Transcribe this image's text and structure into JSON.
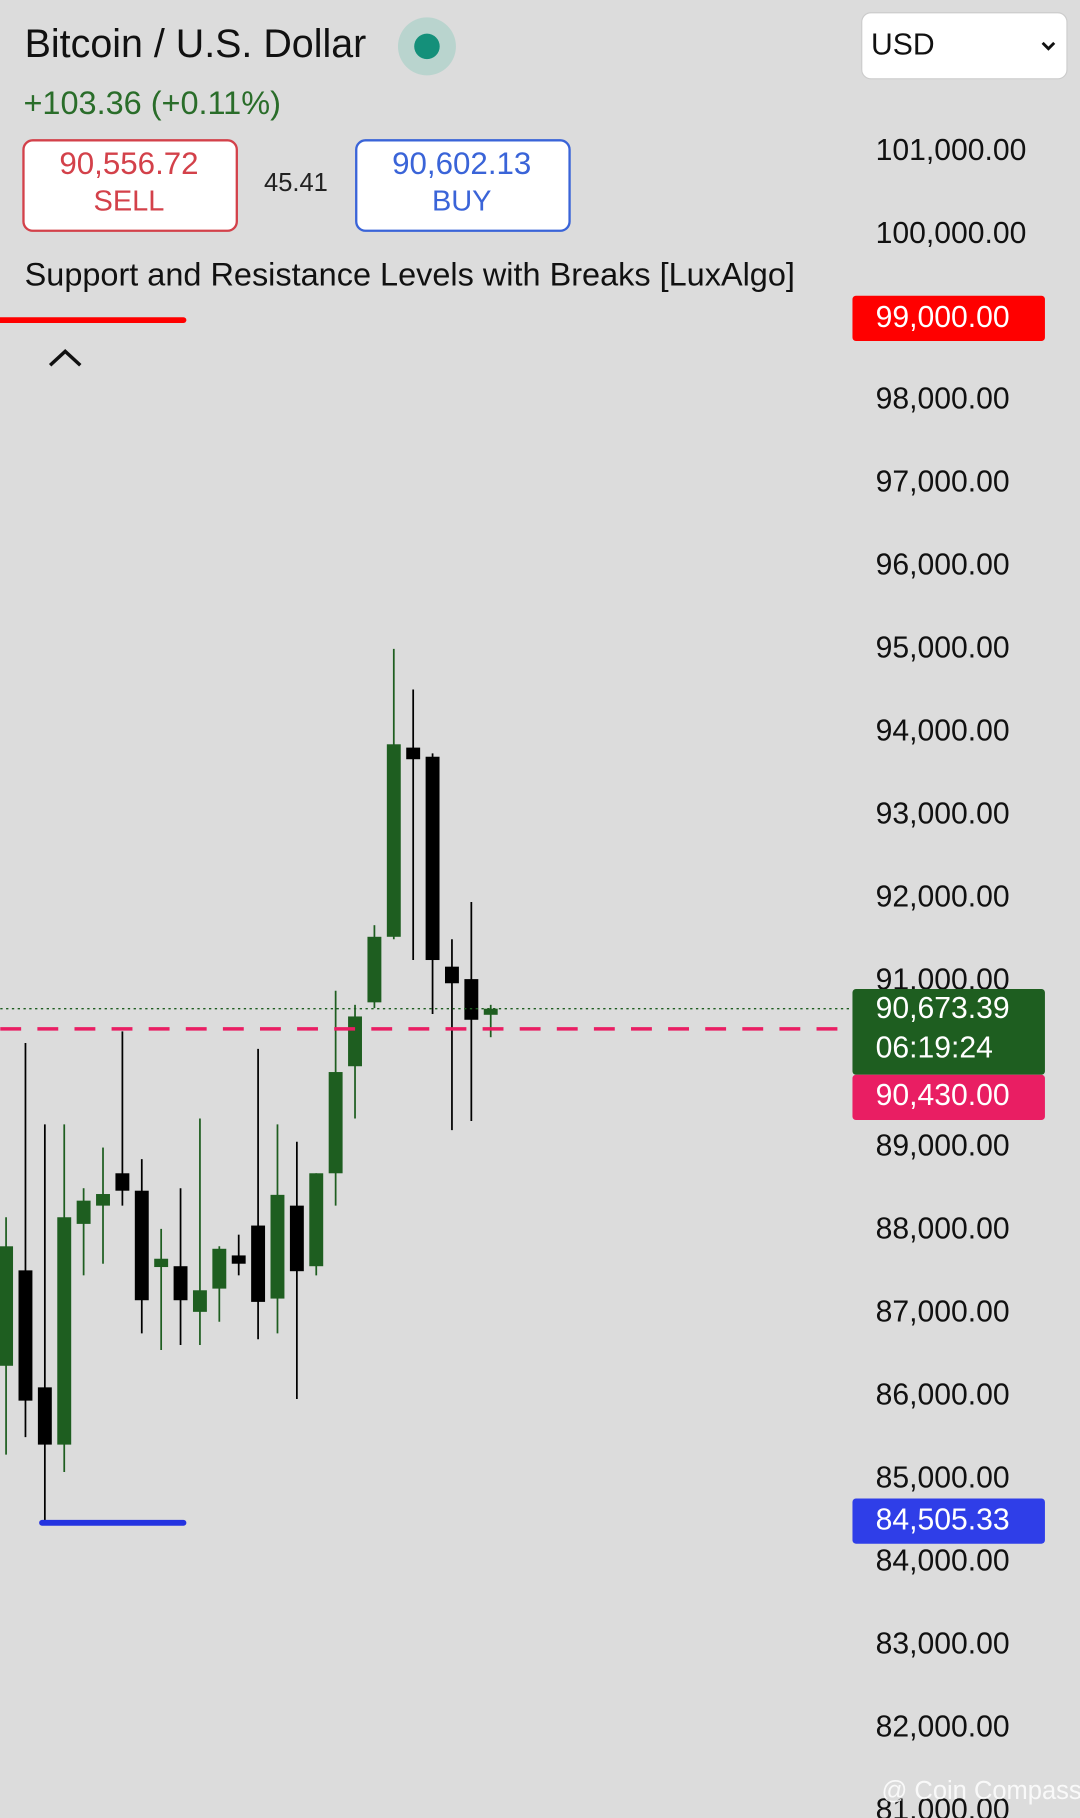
{
  "header": {
    "title": "Bitcoin / U.S. Dollar",
    "change": "+103.36 (+0.11%)",
    "sell_price": "90,556.72",
    "sell": "SELL",
    "spread": "45.41",
    "buy_price": "90,602.13",
    "buy": "BUY",
    "indicator": "Support and Resistance Levels with Breaks [LuxAlgo]",
    "currency": "USD",
    "watermark": "@ Coin Compass"
  },
  "chart_data": {
    "type": "candlestick",
    "open": [
      86370,
      87520,
      86110,
      85420,
      88080,
      88300,
      88690,
      88480,
      87560,
      87570,
      87020,
      87300,
      87700,
      88060,
      87180,
      88300,
      87570,
      88690,
      89980,
      90750,
      91540,
      93820,
      93710,
      91180,
      91030,
      90600
    ],
    "high": [
      88160,
      90260,
      89280,
      89280,
      88510,
      89000,
      90400,
      88860,
      88020,
      88510,
      89350,
      87810,
      87950,
      90190,
      89280,
      89070,
      88690,
      90890,
      90720,
      91680,
      95010,
      94520,
      93750,
      91510,
      91960,
      90720
    ],
    "low": [
      85300,
      85510,
      84505.33,
      85090,
      87460,
      87600,
      88300,
      86760,
      86560,
      86620,
      86620,
      86900,
      87460,
      86690,
      86760,
      85970,
      87460,
      88300,
      89350,
      90680,
      91510,
      91260,
      90610,
      89210,
      89320,
      90330
    ],
    "close": [
      87810,
      85950,
      85420,
      88160,
      88360,
      88440,
      88480,
      87160,
      87660,
      87160,
      87280,
      87780,
      87600,
      87140,
      88430,
      87510,
      88690,
      89910,
      90580,
      91540,
      93860,
      93680,
      91260,
      90980,
      90540,
      90673.39
    ],
    "up_color": "#1e5e20",
    "down_color": "#000000",
    "ylim": [
      80920,
      102830
    ],
    "yticks": [
      {
        "value": 81000,
        "label": "81,000.00"
      },
      {
        "value": 82000,
        "label": "82,000.00"
      },
      {
        "value": 83000,
        "label": "83,000.00"
      },
      {
        "value": 84000,
        "label": "84,000.00"
      },
      {
        "value": 85000,
        "label": "85,000.00"
      },
      {
        "value": 86000,
        "label": "86,000.00"
      },
      {
        "value": 87000,
        "label": "87,000.00"
      },
      {
        "value": 88000,
        "label": "88,000.00"
      },
      {
        "value": 89000,
        "label": "89,000.00"
      },
      {
        "value": 91000,
        "label": "91,000.00"
      },
      {
        "value": 92000,
        "label": "92,000.00"
      },
      {
        "value": 93000,
        "label": "93,000.00"
      },
      {
        "value": 94000,
        "label": "94,000.00"
      },
      {
        "value": 95000,
        "label": "95,000.00"
      },
      {
        "value": 96000,
        "label": "96,000.00"
      },
      {
        "value": 97000,
        "label": "97,000.00"
      },
      {
        "value": 98000,
        "label": "98,000.00"
      },
      {
        "value": 100000,
        "label": "100,000.00"
      },
      {
        "value": 101000,
        "label": "101,000.00"
      }
    ],
    "resistance": {
      "value": 99000,
      "label": "99,000.00",
      "color": "#ff0000"
    },
    "support": {
      "value": 84505.33,
      "label": "84,505.33",
      "color": "#2433e0"
    },
    "breakout": {
      "value": 90430,
      "label": "90,430.00",
      "color": "#e91e63"
    },
    "last_price": {
      "value": 90673.39,
      "label": "90,673.39",
      "countdown": "06:19:24",
      "color": "#1e5e20"
    }
  }
}
